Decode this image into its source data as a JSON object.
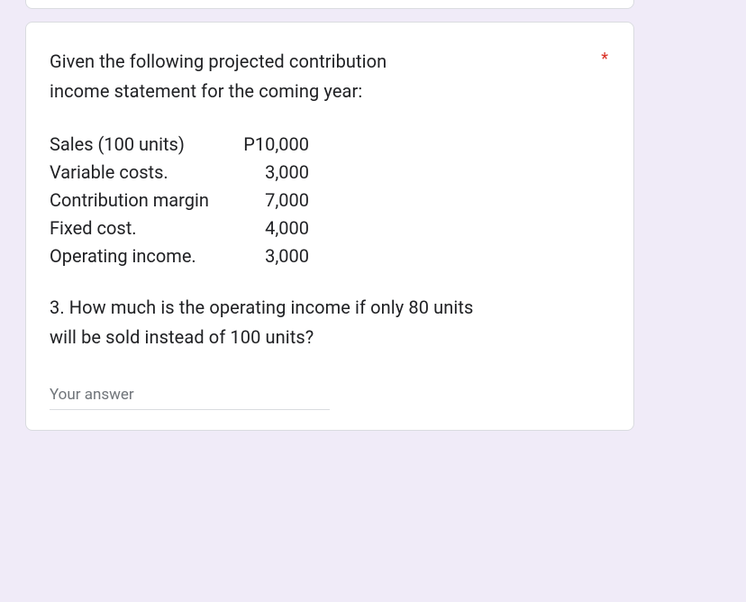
{
  "required_marker": "*",
  "question": {
    "intro_line1": "Given the following projected contribution",
    "intro_line2": "income statement for the coming year:",
    "rows": [
      {
        "label": "Sales (100 units)",
        "value": "P10,000"
      },
      {
        "label": "Variable costs.",
        "value": "3,000"
      },
      {
        "label": "Contribution margin",
        "value": "7,000"
      },
      {
        "label": "Fixed cost.",
        "value": "4,000"
      },
      {
        "label": "Operating income.",
        "value": "3,000"
      }
    ],
    "prompt_line1": "3. How much is the operating income if only 80 units",
    "prompt_line2": "will be sold instead of 100 units?"
  },
  "answer": {
    "placeholder": "Your answer",
    "value": ""
  },
  "colors": {
    "page_bg": "#f0ebf8",
    "card_bg": "#ffffff",
    "card_border": "#dadce0",
    "text": "#202124",
    "required": "#d93025",
    "placeholder": "#70757a"
  }
}
